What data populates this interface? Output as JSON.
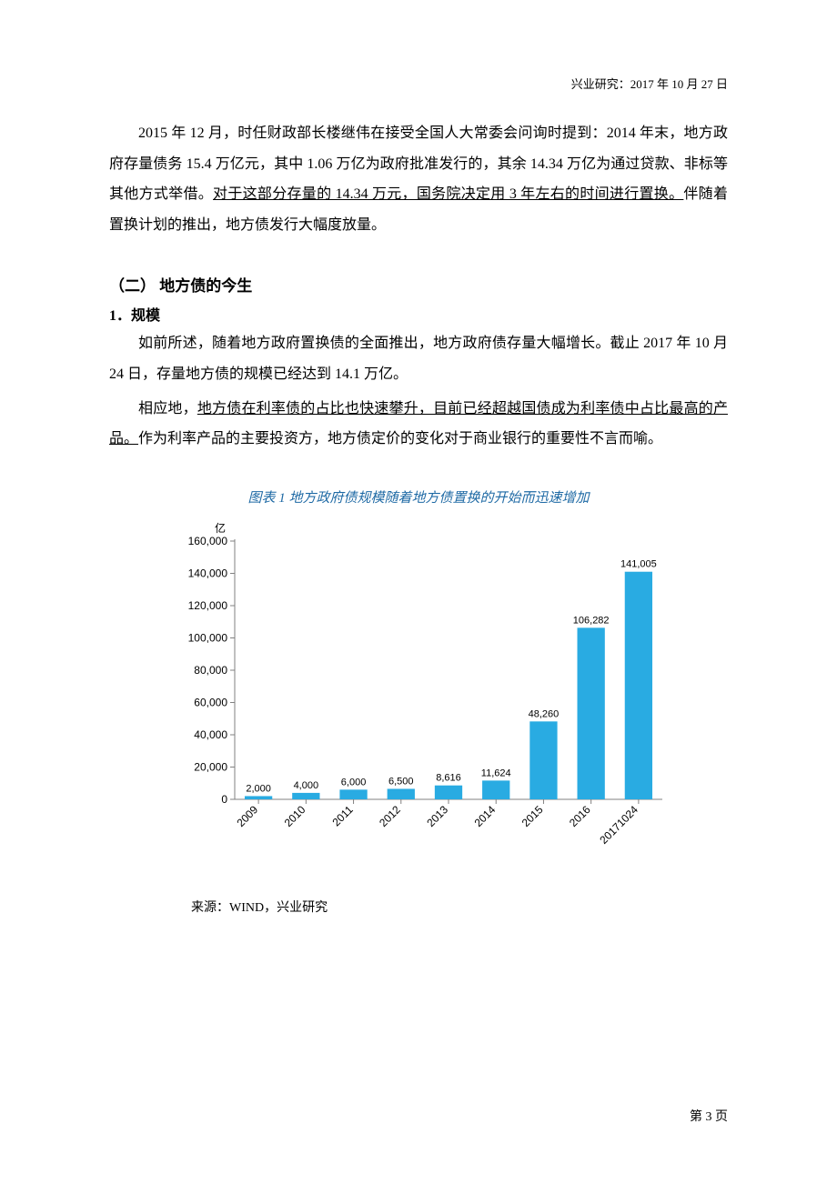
{
  "header": {
    "right_text": "兴业研究：2017 年 10 月 27 日"
  },
  "body": {
    "para1_plain": "2015 年 12 月，时任财政部长楼继伟在接受全国人大常委会问询时提到：2014 年末，地方政府存量债务 15.4 万亿元，其中 1.06 万亿为政府批准发行的，其余 14.34 万亿为通过贷款、非标等其他方式举借。",
    "para1_underlined": "对于这部分存量的 14.34 万元，国务院决定用 3 年左右的时间进行置换。",
    "para1_tail": "伴随着置换计划的推出，地方债发行大幅度放量。",
    "heading2": "（二） 地方债的今生",
    "subheading1": "1．规模",
    "para2": "如前所述，随着地方政府置换债的全面推出，地方政府债存量大幅增长。截止 2017 年 10 月 24 日，存量地方债的规模已经达到 14.1 万亿。",
    "para3_pre": "相应地，",
    "para3_underlined": "地方债在利率债的占比也快速攀升，目前已经超越国债成为利率债中占比最高的产品。",
    "para3_tail": "作为利率产品的主要投资方，地方债定价的变化对于商业银行的重要性不言而喻。"
  },
  "figure": {
    "caption": "图表 1 地方政府债规模随着地方债置换的开始而迅速增加",
    "source": "来源：WIND，兴业研究",
    "source_prefix": "来源：",
    "source_value": "WIND，兴业研究"
  },
  "chart": {
    "type": "bar",
    "y_unit_label": "亿",
    "categories": [
      "2009",
      "2010",
      "2011",
      "2012",
      "2013",
      "2014",
      "2015",
      "2016",
      "20171024"
    ],
    "values": [
      2000,
      4000,
      6000,
      6500,
      8616,
      11624,
      48260,
      106282,
      141005
    ],
    "value_labels": [
      "2,000",
      "4,000",
      "6,000",
      "6,500",
      "8,616",
      "11,624",
      "48,260",
      "106,282",
      "141,005"
    ],
    "ylim": [
      0,
      160000
    ],
    "ytick_step": 20000,
    "ytick_labels": [
      "0",
      "20,000",
      "40,000",
      "60,000",
      "80,000",
      "100,000",
      "120,000",
      "140,000",
      "160,000"
    ],
    "bar_color": "#29abe2",
    "axis_color": "#808080",
    "text_color": "#000000",
    "background_color": "#ffffff",
    "label_fontsize": 12,
    "value_label_fontsize": 11,
    "tick_fontsize": 12,
    "bar_width_ratio": 0.58,
    "xlabel_rotation": -45
  },
  "footer": {
    "page_number": "第 3 页"
  }
}
